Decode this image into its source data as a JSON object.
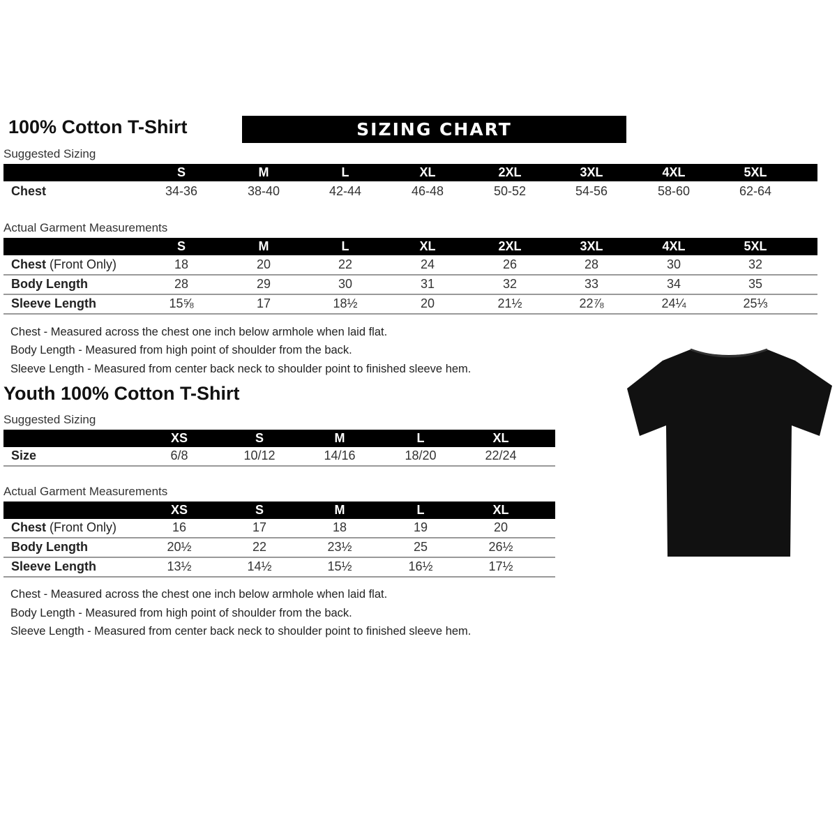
{
  "adult": {
    "title": "100% Cotton T-Shirt",
    "banner": "SIZING CHART",
    "suggested_label": "Suggested Sizing",
    "sizes": [
      "S",
      "M",
      "L",
      "XL",
      "2XL",
      "3XL",
      "4XL",
      "5XL"
    ],
    "suggested_rows": [
      {
        "label": "Chest",
        "values": [
          "34-36",
          "38-40",
          "42-44",
          "46-48",
          "50-52",
          "54-56",
          "58-60",
          "62-64"
        ]
      }
    ],
    "actual_label": "Actual Garment Measurements",
    "actual_rows": [
      {
        "label": "Chest",
        "label_suffix": " (Front Only)",
        "values": [
          "18",
          "20",
          "22",
          "24",
          "26",
          "28",
          "30",
          "32"
        ]
      },
      {
        "label": "Body Length",
        "values": [
          "28",
          "29",
          "30",
          "31",
          "32",
          "33",
          "34",
          "35"
        ]
      },
      {
        "label": "Sleeve Length",
        "values": [
          "15⅝",
          "17",
          "18½",
          "20",
          "21½",
          "22⅞",
          "24¼",
          "25⅓"
        ]
      }
    ],
    "notes": [
      "Chest - Measured across the chest one inch below armhole when laid flat.",
      "Body Length - Measured from high point of shoulder from the back.",
      "Sleeve Length - Measured from center back neck to shoulder point to finished sleeve hem."
    ]
  },
  "youth": {
    "title": "Youth 100% Cotton T-Shirt",
    "suggested_label": "Suggested Sizing",
    "sizes": [
      "XS",
      "S",
      "M",
      "L",
      "XL"
    ],
    "suggested_rows": [
      {
        "label": "Size",
        "values": [
          "6/8",
          "10/12",
          "14/16",
          "18/20",
          "22/24"
        ]
      }
    ],
    "actual_label": "Actual Garment Measurements",
    "actual_rows": [
      {
        "label": "Chest",
        "label_suffix": " (Front Only)",
        "values": [
          "16",
          "17",
          "18",
          "19",
          "20"
        ]
      },
      {
        "label": "Body Length",
        "values": [
          "20½",
          "22",
          "23½",
          "25",
          "26½"
        ]
      },
      {
        "label": "Sleeve Length",
        "values": [
          "13½",
          "14½",
          "15½",
          "16½",
          "17½"
        ]
      }
    ],
    "notes": [
      "Chest - Measured across the chest one inch below armhole when laid flat.",
      "Body Length - Measured from high point of shoulder from the back.",
      "Sleeve Length - Measured from center back neck to shoulder point to finished sleeve hem."
    ]
  },
  "tshirt_color": "#111111"
}
